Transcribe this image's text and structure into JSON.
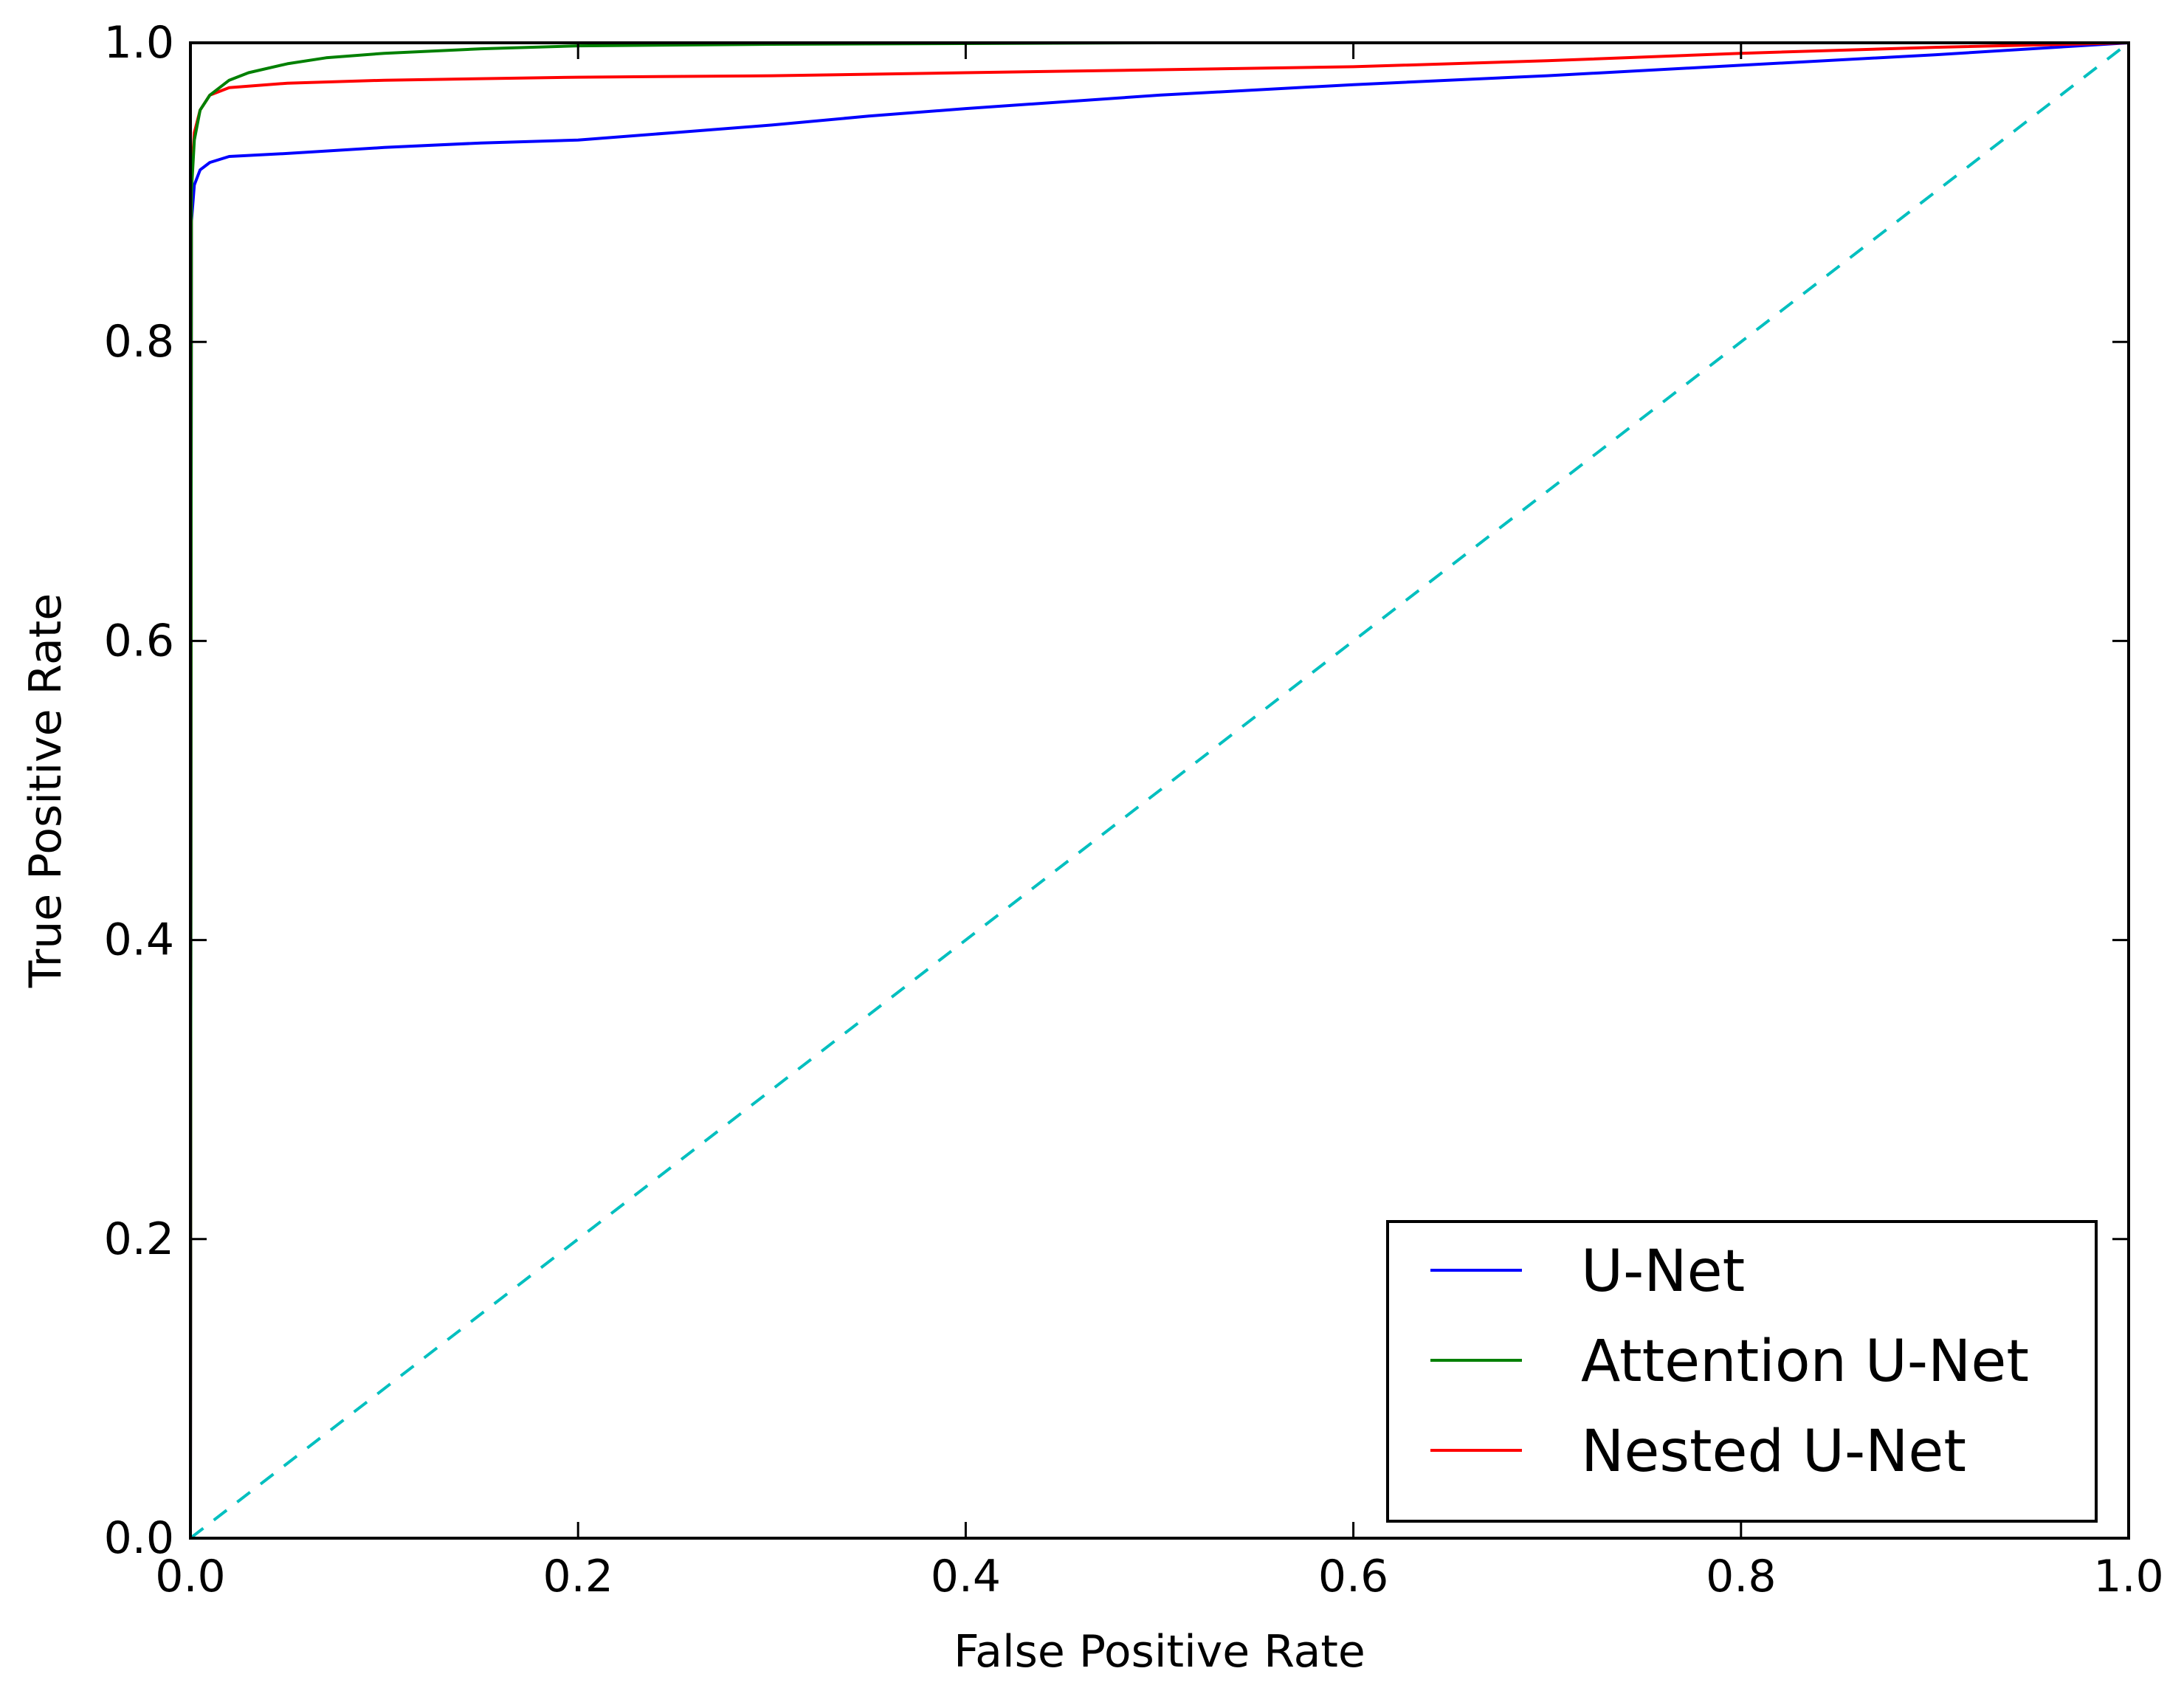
{
  "chart_data": {
    "type": "line",
    "title": "",
    "xlabel": "False Positive Rate",
    "ylabel": "True Positive Rate",
    "xlim": [
      0.0,
      1.0
    ],
    "ylim": [
      0.0,
      1.0
    ],
    "grid": false,
    "legend_position": "bottom-right",
    "x_ticks": [
      0.0,
      0.2,
      0.4,
      0.6,
      0.8,
      1.0
    ],
    "y_ticks": [
      0.0,
      0.2,
      0.4,
      0.6,
      0.8,
      1.0
    ],
    "x_tick_labels": [
      "0.0",
      "0.2",
      "0.4",
      "0.6",
      "0.8",
      "1.0"
    ],
    "y_tick_labels": [
      "0.0",
      "0.2",
      "0.4",
      "0.6",
      "0.8",
      "1.0"
    ],
    "series": [
      {
        "name": "U-Net",
        "color": "#0000ff",
        "x": [
          0.0,
          0.0005,
          0.002,
          0.005,
          0.01,
          0.02,
          0.05,
          0.1,
          0.15,
          0.2,
          0.25,
          0.3,
          0.35,
          0.4,
          0.5,
          0.6,
          0.7,
          0.8,
          0.9,
          1.0
        ],
        "y": [
          0.0,
          0.88,
          0.905,
          0.915,
          0.92,
          0.924,
          0.926,
          0.93,
          0.933,
          0.935,
          0.94,
          0.945,
          0.951,
          0.956,
          0.965,
          0.972,
          0.978,
          0.985,
          0.992,
          1.0
        ]
      },
      {
        "name": "Attention U-Net",
        "color": "#008000",
        "x": [
          0.0,
          0.0005,
          0.002,
          0.005,
          0.01,
          0.02,
          0.03,
          0.05,
          0.07,
          0.1,
          0.15,
          0.2,
          0.3,
          0.5,
          0.7,
          1.0
        ],
        "y": [
          0.0,
          0.9,
          0.935,
          0.955,
          0.965,
          0.975,
          0.98,
          0.986,
          0.99,
          0.993,
          0.996,
          0.998,
          0.999,
          1.0,
          1.0,
          1.0
        ]
      },
      {
        "name": "Nested U-Net",
        "color": "#ff0000",
        "x": [
          0.0,
          0.0005,
          0.002,
          0.005,
          0.01,
          0.02,
          0.05,
          0.1,
          0.2,
          0.3,
          0.4,
          0.5,
          0.6,
          0.7,
          0.8,
          0.9,
          1.0
        ],
        "y": [
          0.0,
          0.91,
          0.94,
          0.955,
          0.965,
          0.97,
          0.973,
          0.975,
          0.977,
          0.978,
          0.98,
          0.982,
          0.984,
          0.988,
          0.993,
          0.997,
          1.0
        ]
      },
      {
        "color": "#00bfbf",
        "dashed": true,
        "x": [
          0.0,
          1.0
        ],
        "y": [
          0.0,
          1.0
        ]
      }
    ]
  }
}
